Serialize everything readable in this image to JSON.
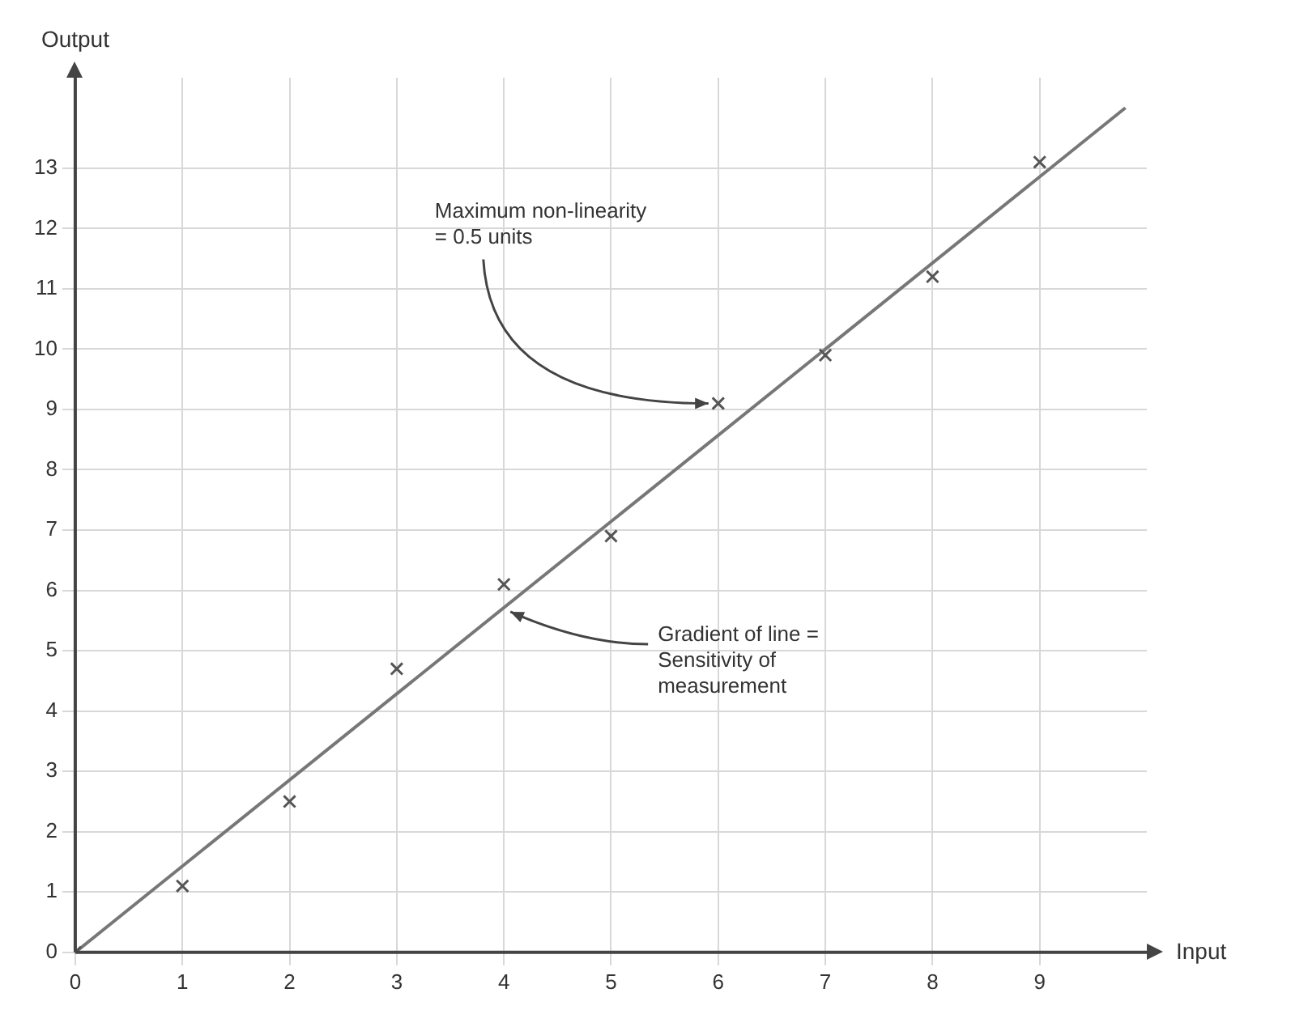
{
  "chart_data": {
    "type": "scatter",
    "xlabel": "Input",
    "ylabel": "Output",
    "x": [
      0,
      1,
      2,
      3,
      4,
      5,
      6,
      7,
      8,
      9
    ],
    "series": [
      {
        "values": [
          0,
          1.1,
          2.5,
          4.7,
          6.1,
          6.9,
          9.1,
          9.9,
          11.2,
          13.1
        ],
        "color": "#555555",
        "marker": "cross"
      },
      {
        "type": "line",
        "x": [
          0,
          9.8
        ],
        "values": [
          0,
          14
        ],
        "color": "#777777"
      }
    ],
    "grid": true,
    "xlim": [
      0,
      10
    ],
    "xticks": [
      0,
      1,
      2,
      3,
      4,
      5,
      6,
      7,
      8,
      9
    ],
    "ylim": [
      0,
      14.5
    ],
    "yticks": [
      0,
      1,
      2,
      3,
      4,
      5,
      6,
      7,
      8,
      9,
      10,
      11,
      12,
      13
    ],
    "annotations": [
      {
        "text": "Maximum non-linearity = 0.5 units",
        "x": 6,
        "y": 9.1
      },
      {
        "text": "Gradient of line = Sensitivity of measurement",
        "x": 4,
        "y": 5.7
      }
    ]
  }
}
